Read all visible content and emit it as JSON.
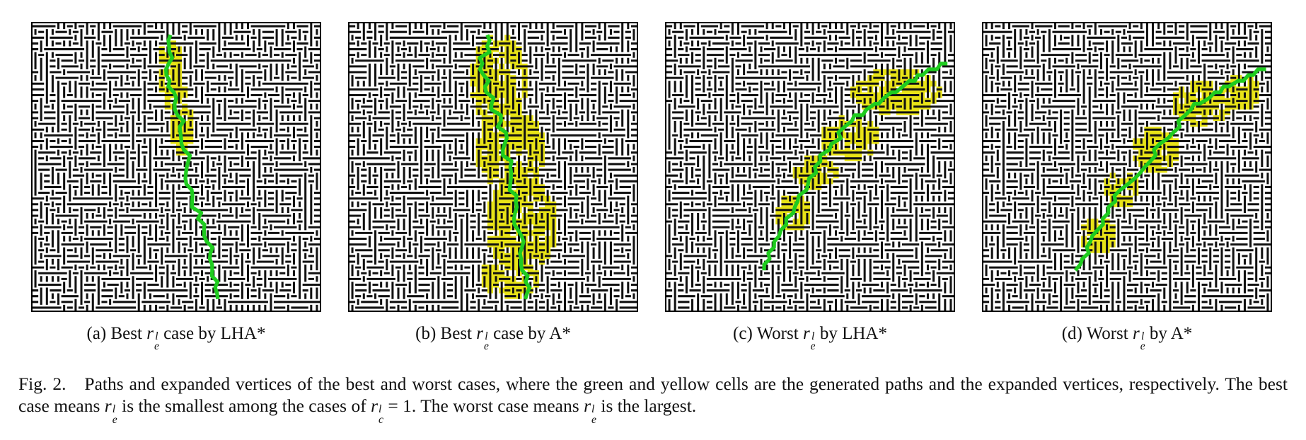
{
  "panels": [
    {
      "id": "a",
      "prefix": "(a) Best",
      "suffix": "case by LHA*"
    },
    {
      "id": "b",
      "prefix": "(b) Best",
      "suffix": "case by A*"
    },
    {
      "id": "c",
      "prefix": "(c) Worst",
      "suffix": "by LHA*"
    },
    {
      "id": "d",
      "prefix": "(d) Worst",
      "suffix": "by A*"
    }
  ],
  "symbol": {
    "base": "r",
    "sup": "l",
    "sub": "e"
  },
  "symbol_c": {
    "base": "r",
    "sup": "l",
    "sub": "c"
  },
  "caption": {
    "label": "Fig. 2.",
    "part1": "Paths and expanded vertices of the best and worst cases, where the green and yellow cells are the generated paths and the expanded vertices, respectively. The best case means",
    "part2": "is the smallest among the cases of",
    "equals": "= 1.",
    "part3": "The worst case means",
    "part4": "is the largest."
  },
  "colors": {
    "path": "#1fcc1f",
    "expanded": "#e8e317",
    "wall": "#111111"
  }
}
